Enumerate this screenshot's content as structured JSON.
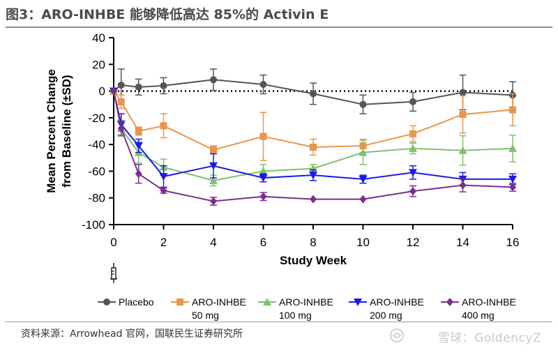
{
  "page": {
    "title": "图3：ARO-INHBE 能够降低高达 85%的 Activin E",
    "source": "资料来源：Arrowhead 官网，国联民生证券研究所",
    "watermark": "雪球：GoldencyZ"
  },
  "chart_data": {
    "type": "line",
    "xlabel": "Study Week",
    "ylabel": "Mean Percent Change from Baseline (±SD)",
    "ylabel_lines": [
      "Mean Percent Change",
      "from Baseline (±SD)"
    ],
    "xlim": [
      0,
      16
    ],
    "ylim": [
      -100,
      40
    ],
    "xticks": [
      0,
      2,
      4,
      6,
      8,
      10,
      12,
      14,
      16
    ],
    "yticks": [
      40,
      20,
      0,
      -20,
      -40,
      -60,
      -80,
      -100
    ],
    "reference_line": 0,
    "series": [
      {
        "name": "Placebo",
        "name_lines": [
          "Placebo"
        ],
        "color": "#555555",
        "marker": "circle",
        "x": [
          0,
          0.3,
          1,
          2,
          4,
          6,
          8,
          10,
          12,
          14,
          16
        ],
        "y": [
          0,
          4.5,
          3,
          4,
          8.5,
          5,
          -2,
          -10,
          -8,
          -1,
          -3
        ],
        "err": [
          0,
          12,
          6,
          6,
          8,
          7,
          8,
          7,
          7,
          13,
          10
        ]
      },
      {
        "name": "ARO-INHBE 50 mg",
        "name_lines": [
          "ARO-INHBE",
          "50 mg"
        ],
        "color": "#e8964a",
        "marker": "square",
        "x": [
          0,
          0.3,
          1,
          2,
          4,
          6,
          8,
          10,
          12,
          14,
          16
        ],
        "y": [
          0,
          -8,
          -30,
          -26,
          -44,
          -34,
          -42,
          -41,
          -32,
          -17.5,
          -14
        ],
        "err": [
          0,
          5,
          3,
          9,
          3,
          18,
          6,
          5,
          6,
          14,
          12
        ]
      },
      {
        "name": "ARO-INHBE 100 mg",
        "name_lines": [
          "ARO-INHBE",
          "100 mg"
        ],
        "color": "#7fc06f",
        "marker": "triangle-up",
        "x": [
          0,
          0.3,
          1,
          2,
          4,
          6,
          8,
          10,
          12,
          14,
          16
        ],
        "y": [
          0,
          -28,
          -46,
          -57,
          -67,
          -60,
          -58,
          -46,
          -43,
          -44.5,
          -43
        ],
        "err": [
          0,
          6,
          8,
          6,
          4,
          5,
          3,
          9,
          4,
          11,
          10
        ]
      },
      {
        "name": "ARO-INHBE 200 mg",
        "name_lines": [
          "ARO-INHBE",
          "200 mg"
        ],
        "color": "#1a1ae6",
        "marker": "triangle-down",
        "x": [
          0,
          0.3,
          1,
          2,
          4,
          6,
          8,
          10,
          12,
          14,
          16
        ],
        "y": [
          0,
          -25,
          -41,
          -64,
          -56,
          -65,
          -63,
          -66,
          -61,
          -66,
          -66
        ],
        "err": [
          0,
          8,
          5,
          8,
          9,
          3,
          4,
          3,
          5,
          5,
          4
        ]
      },
      {
        "name": "ARO-INHBE 400 mg",
        "name_lines": [
          "ARO-INHBE",
          "400 mg"
        ],
        "color": "#7a2f8f",
        "marker": "diamond",
        "x": [
          0,
          0.3,
          1,
          2,
          4,
          6,
          8,
          10,
          12,
          14,
          16
        ],
        "y": [
          0,
          -28,
          -62,
          -74.5,
          -82.5,
          -79,
          -81,
          -81,
          -75,
          -70.5,
          -72
        ],
        "err": [
          0,
          5,
          7,
          2,
          3,
          3,
          0,
          0,
          4,
          5,
          3
        ]
      }
    ]
  }
}
